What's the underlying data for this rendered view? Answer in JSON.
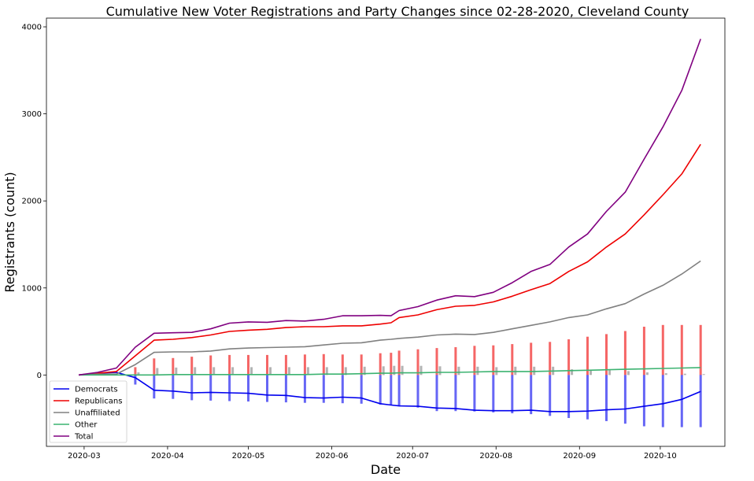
{
  "chart_data": {
    "type": "line",
    "title": "Cumulative New Voter Registrations and Party Changes since 02-28-2020, Cleveland County",
    "xlabel": "Date",
    "ylabel": "Registrants (count)",
    "x_axis": {
      "type": "date",
      "range": [
        "2020-02-16",
        "2020-10-25"
      ],
      "ticks": [
        "2020-03",
        "2020-04",
        "2020-05",
        "2020-06",
        "2020-07",
        "2020-08",
        "2020-09",
        "2020-10"
      ]
    },
    "ylim": [
      -820,
      4100
    ],
    "yticks": [
      0,
      1000,
      2000,
      3000,
      4000
    ],
    "grid": false,
    "legend": {
      "placement": "lower-left"
    },
    "dates": [
      "2020-02-28",
      "2020-03-06",
      "2020-03-13",
      "2020-03-20",
      "2020-03-27",
      "2020-04-03",
      "2020-04-10",
      "2020-04-17",
      "2020-04-24",
      "2020-05-01",
      "2020-05-08",
      "2020-05-15",
      "2020-05-22",
      "2020-05-29",
      "2020-06-05",
      "2020-06-12",
      "2020-06-19",
      "2020-06-23",
      "2020-06-26",
      "2020-07-03",
      "2020-07-10",
      "2020-07-17",
      "2020-07-24",
      "2020-07-31",
      "2020-08-07",
      "2020-08-14",
      "2020-08-21",
      "2020-08-28",
      "2020-09-04",
      "2020-09-11",
      "2020-09-18",
      "2020-09-25",
      "2020-10-02",
      "2020-10-09",
      "2020-10-16"
    ],
    "series": [
      {
        "name": "Democrats",
        "color": "#0000ee",
        "values": [
          0,
          20,
          30,
          -30,
          -175,
          -185,
          -205,
          -200,
          -205,
          -210,
          -230,
          -235,
          -260,
          -265,
          -255,
          -265,
          -330,
          -345,
          -355,
          -360,
          -380,
          -385,
          -405,
          -410,
          -410,
          -405,
          -420,
          -420,
          -415,
          -400,
          -390,
          -360,
          -330,
          -280,
          -190
        ]
      },
      {
        "name": "Republicans",
        "color": "#ee0000",
        "values": [
          0,
          20,
          40,
          220,
          400,
          410,
          430,
          460,
          500,
          515,
          525,
          545,
          555,
          555,
          565,
          565,
          585,
          600,
          660,
          690,
          750,
          790,
          800,
          840,
          905,
          980,
          1050,
          1190,
          1300,
          1470,
          1620,
          1840,
          2070,
          2310,
          2650
        ]
      },
      {
        "name": "Unaffiliated",
        "color": "#808080",
        "values": [
          0,
          10,
          10,
          120,
          260,
          265,
          265,
          275,
          300,
          310,
          315,
          320,
          325,
          345,
          365,
          370,
          400,
          410,
          420,
          435,
          460,
          470,
          465,
          490,
          530,
          570,
          610,
          660,
          690,
          760,
          820,
          930,
          1030,
          1160,
          1310
        ]
      },
      {
        "name": "Other",
        "color": "#3cb371",
        "values": [
          0,
          0,
          0,
          0,
          0,
          5,
          5,
          5,
          5,
          5,
          5,
          5,
          5,
          10,
          10,
          15,
          20,
          20,
          25,
          25,
          30,
          30,
          35,
          40,
          40,
          40,
          45,
          50,
          55,
          60,
          65,
          70,
          75,
          80,
          85
        ]
      },
      {
        "name": "Total",
        "color": "#800080",
        "values": [
          0,
          30,
          80,
          320,
          480,
          485,
          490,
          530,
          595,
          610,
          605,
          625,
          620,
          640,
          680,
          680,
          685,
          680,
          740,
          785,
          860,
          910,
          900,
          950,
          1060,
          1190,
          1270,
          1470,
          1620,
          1880,
          2100,
          2480,
          2850,
          3270,
          3860
        ]
      }
    ],
    "bars": [
      {
        "color": "#ee0000",
        "values": [
          0,
          0,
          0,
          90,
          190,
          195,
          210,
          225,
          230,
          230,
          230,
          230,
          235,
          240,
          235,
          235,
          250,
          255,
          280,
          295,
          310,
          320,
          335,
          340,
          355,
          370,
          380,
          410,
          440,
          470,
          505,
          555,
          575,
          575,
          575
        ]
      },
      {
        "color": "#0000ee",
        "values": [
          0,
          0,
          0,
          -110,
          -270,
          -275,
          -290,
          -295,
          -300,
          -305,
          -310,
          -315,
          -320,
          -320,
          -325,
          -330,
          -340,
          -350,
          -360,
          -375,
          -415,
          -415,
          -420,
          -430,
          -440,
          -450,
          -470,
          -495,
          -510,
          -530,
          -560,
          -590,
          -600,
          -600,
          -600
        ]
      },
      {
        "color": "#808080",
        "values": [
          0,
          0,
          0,
          30,
          80,
          85,
          90,
          90,
          90,
          90,
          90,
          90,
          90,
          90,
          90,
          95,
          100,
          105,
          105,
          105,
          100,
          95,
          95,
          90,
          95,
          95,
          95,
          65,
          60,
          55,
          45,
          30,
          20,
          15,
          10
        ]
      }
    ]
  }
}
